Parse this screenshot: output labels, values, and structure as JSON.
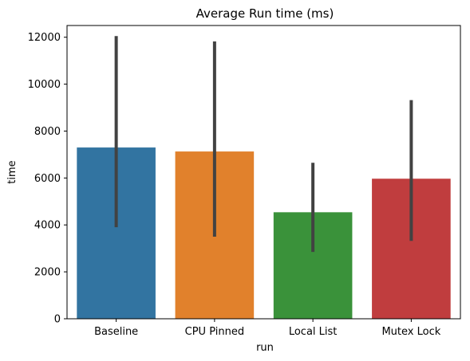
{
  "chart_data": {
    "type": "bar",
    "title": "Average Run time (ms)",
    "xlabel": "run",
    "ylabel": "time",
    "categories": [
      "Baseline",
      "CPU Pinned",
      "Local List",
      "Mutex Lock"
    ],
    "values": [
      7300,
      7130,
      4540,
      5970
    ],
    "error_bars": [
      {
        "low": 3900,
        "high": 12050
      },
      {
        "low": 3500,
        "high": 11820
      },
      {
        "low": 2850,
        "high": 6650
      },
      {
        "low": 3320,
        "high": 9320
      }
    ],
    "colors": [
      "#3274a1",
      "#e1812c",
      "#3a923a",
      "#c03d3e"
    ],
    "error_bar_color": "#424242",
    "ylim": [
      0,
      12500
    ],
    "yticks": [
      0,
      2000,
      4000,
      6000,
      8000,
      10000,
      12000
    ],
    "grid": false,
    "legend": "none"
  }
}
